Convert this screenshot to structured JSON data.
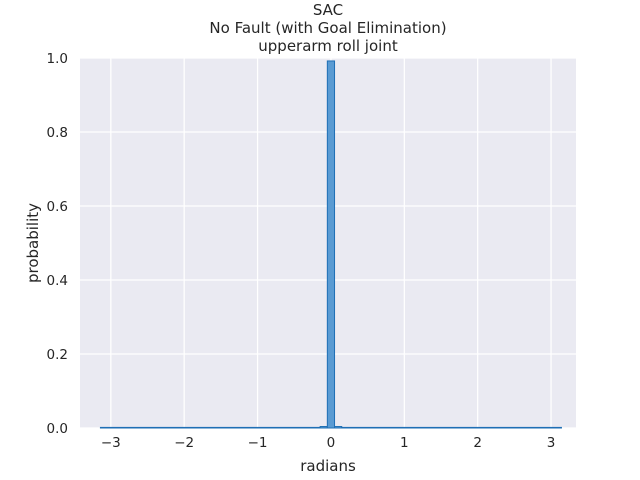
{
  "chart_data": {
    "type": "bar",
    "title_lines": [
      "SAC",
      "No Fault (with Goal Elimination)",
      "upperarm roll joint"
    ],
    "xlabel": "radians",
    "ylabel": "probability",
    "xlim": [
      -3.42,
      3.34
    ],
    "ylim": [
      0.0,
      1.0
    ],
    "xticks": [
      -3,
      -2,
      -1,
      0,
      1,
      2,
      3
    ],
    "xtick_labels": [
      "−3",
      "−2",
      "−1",
      "0",
      "1",
      "2",
      "3"
    ],
    "yticks": [
      0.0,
      0.2,
      0.4,
      0.6,
      0.8,
      1.0
    ],
    "ytick_labels": [
      "0.0",
      "0.2",
      "0.4",
      "0.6",
      "0.8",
      "1.0"
    ],
    "grid": true,
    "bin_width": 0.0982,
    "bins": [
      {
        "x0": -3.1416,
        "x1": -0.1473,
        "value": 0.0
      },
      {
        "x0": -0.1473,
        "x1": -0.0491,
        "value": 0.004
      },
      {
        "x0": -0.0491,
        "x1": 0.0491,
        "value": 0.992
      },
      {
        "x0": 0.0491,
        "x1": 0.1473,
        "value": 0.004
      },
      {
        "x0": 0.1473,
        "x1": 3.1416,
        "value": 0.0
      }
    ],
    "colors": {
      "plot_background": "#eaeaf2",
      "grid": "#ffffff",
      "bar_fill": "#5a9bd3",
      "bar_edge": "#1f6fb5"
    }
  }
}
